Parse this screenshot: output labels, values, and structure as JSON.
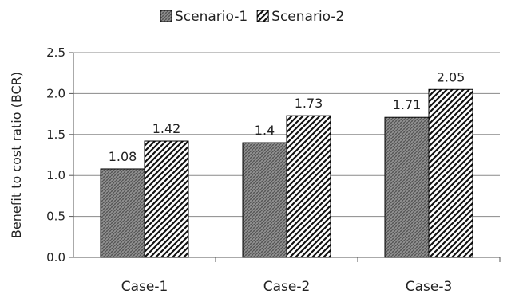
{
  "chart_data": {
    "type": "bar",
    "categories": [
      "Case-1",
      "Case-2",
      "Case-3"
    ],
    "series": [
      {
        "name": "Scenario-1",
        "values": [
          1.08,
          1.4,
          1.71
        ],
        "labels": [
          "1.08",
          "1.4",
          "1.71"
        ],
        "color": "#808080",
        "pattern": "crosshatch"
      },
      {
        "name": "Scenario-2",
        "values": [
          1.42,
          1.73,
          2.05
        ],
        "labels": [
          "1.42",
          "1.73",
          "2.05"
        ],
        "color": "#000000",
        "pattern": "diagonal"
      }
    ],
    "title": "",
    "xlabel": "",
    "ylabel": "Benefit to cost ratio (BCR)",
    "ylim": [
      0,
      2.5
    ],
    "yticks": [
      "0.0",
      "0.5",
      "1.0",
      "1.5",
      "2.0",
      "2.5"
    ],
    "grid": true,
    "legend": "top-center"
  }
}
